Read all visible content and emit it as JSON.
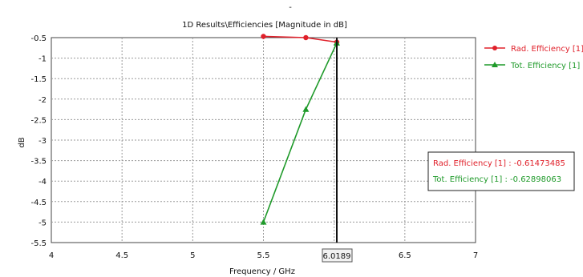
{
  "chart_data": {
    "type": "line",
    "title": "1D Results\\Efficiencies [Magnitude in dB]",
    "xlabel": "Frequency / GHz",
    "ylabel": "dB",
    "xlim": [
      4,
      7
    ],
    "ylim": [
      -5.5,
      -0.5
    ],
    "x_ticks": [
      "4",
      "4.5",
      "5",
      "5.5",
      "6",
      "6.5",
      "7"
    ],
    "y_ticks": [
      "-0.5",
      "-1",
      "-1.5",
      "-2",
      "-2.5",
      "-3",
      "-3.5",
      "-4",
      "-4.5",
      "-5",
      "-5.5"
    ],
    "grid": true,
    "legend_position": "right-top",
    "series": [
      {
        "name": "Rad. Efficiency [1]",
        "color": "#e0202a",
        "marker": "circle",
        "x": [
          5.5,
          5.8,
          6.0189
        ],
        "y": [
          -0.47,
          -0.5,
          -0.61
        ]
      },
      {
        "name": "Tot. Efficiency [1]",
        "color": "#1f9a2a",
        "marker": "triangle",
        "x": [
          5.5,
          5.8,
          6.0189
        ],
        "y": [
          -5.0,
          -2.25,
          -0.63
        ]
      }
    ],
    "marker_line": {
      "x": 6.0189,
      "label": "6.0189"
    },
    "annotation": {
      "lines": [
        {
          "text": "Rad. Efficiency [1] : -0.61473485",
          "color": "#e0202a"
        },
        {
          "text": "Tot. Efficiency [1] : -0.62898063",
          "color": "#1f9a2a"
        }
      ]
    }
  }
}
